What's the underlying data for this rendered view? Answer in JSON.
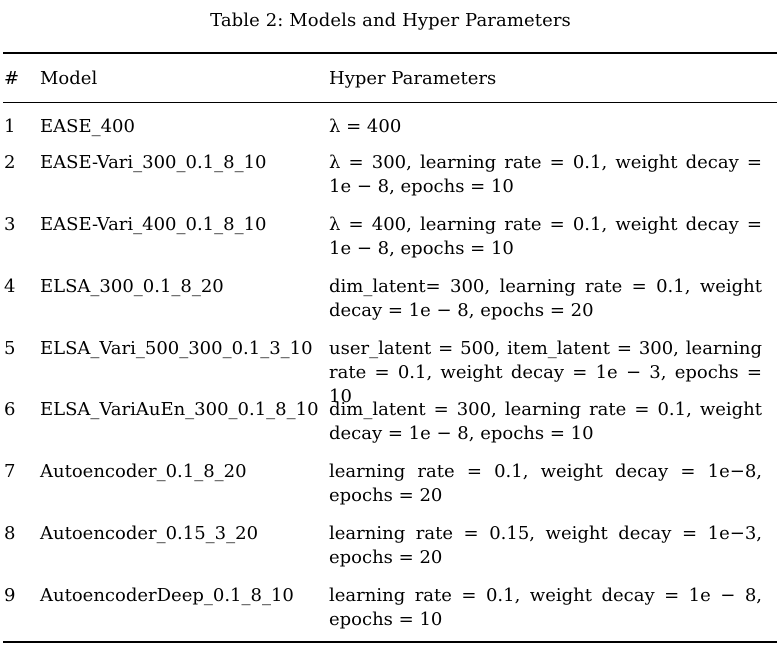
{
  "caption": "Table 2: Models and Hyper Parameters",
  "table": {
    "headers": {
      "num": "#",
      "model": "Model",
      "params": "Hyper Parameters"
    },
    "rows": [
      {
        "num": "1",
        "model": "EASE_400",
        "params": "λ = 400"
      },
      {
        "num": "2",
        "model": "EASE-Vari_300_0.1_8_10",
        "params": "λ = 300, learning rate = 0.1, weight decay = 1e − 8, epochs = 10"
      },
      {
        "num": "3",
        "model": "EASE-Vari_400_0.1_8_10",
        "params": "λ = 400, learning rate = 0.1, weight decay = 1e − 8, epochs = 10"
      },
      {
        "num": "4",
        "model": "ELSA_300_0.1_8_20",
        "params": "dim_latent= 300, learning rate = 0.1, weight de­cay = 1e − 8, epochs = 20"
      },
      {
        "num": "5",
        "model": "ELSA_Vari_500_300_0.1_3_10",
        "params": "user_latent = 500, item_latent = 300, learning rate = 0.1, weight decay = 1e − 3, epochs = 10"
      },
      {
        "num": "6",
        "model": "ELSA_VariAuEn_300_0.1_8_10",
        "params": "dim_latent = 300, learning rate = 0.1, weight de­cay = 1e − 8, epochs = 10"
      },
      {
        "num": "7",
        "model": "Autoencoder_0.1_8_20",
        "params": "learning rate = 0.1, weight decay = 1e−8, epochs = 20"
      },
      {
        "num": "8",
        "model": "Autoencoder_0.15_3_20",
        "params": "learning rate = 0.15, weight decay = 1e−3, epochs = 20"
      },
      {
        "num": "9",
        "model": "AutoencoderDeep_0.1_8_10",
        "params": "learning rate = 0.1, weight decay = 1e − 8, epochs = 10"
      }
    ]
  }
}
